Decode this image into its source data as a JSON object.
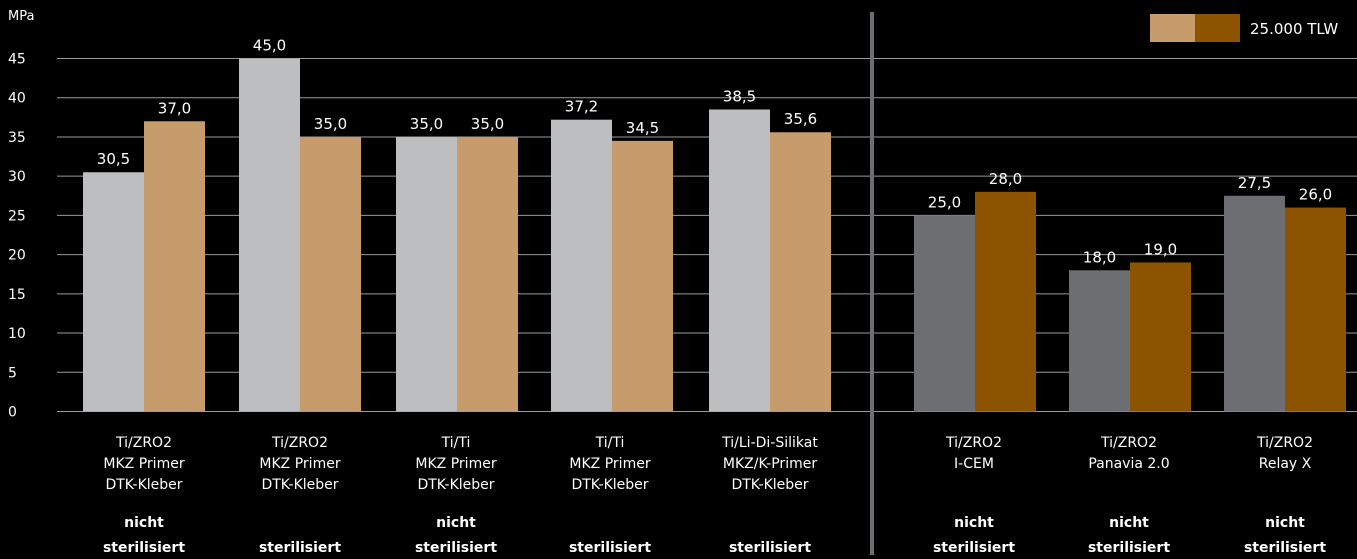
{
  "chart_data": {
    "type": "bar",
    "y_unit": "MPa",
    "ylim": [
      0,
      45
    ],
    "y_ticks": [
      0,
      5,
      10,
      15,
      20,
      25,
      30,
      35,
      40,
      45
    ],
    "grid": true,
    "legend": {
      "label": "25.000 TLW",
      "placement": "top-right",
      "colors": [
        "#c69c6d",
        "#8c5400"
      ]
    },
    "groups": [
      {
        "label": [
          "Ti/ZRO2",
          "MKZ Primer",
          "DTK-Kleber"
        ],
        "status": [
          "nicht",
          "sterilisiert"
        ],
        "values": [
          30.5,
          37.0
        ],
        "value_labels": [
          "30,5",
          "37,0"
        ],
        "colors": [
          "#bcbec0",
          "#c69c6d"
        ]
      },
      {
        "label": [
          "Ti/ZRO2",
          "MKZ Primer",
          "DTK-Kleber"
        ],
        "status": [
          "sterilisiert"
        ],
        "values": [
          45.0,
          35.0
        ],
        "value_labels": [
          "45,0",
          "35,0"
        ],
        "colors": [
          "#bcbec0",
          "#c69c6d"
        ]
      },
      {
        "label": [
          "Ti/Ti",
          "MKZ Primer",
          "DTK-Kleber"
        ],
        "status": [
          "nicht",
          "sterilisiert"
        ],
        "values": [
          35.0,
          35.0
        ],
        "value_labels": [
          "35,0",
          "35,0"
        ],
        "colors": [
          "#bcbec0",
          "#c69c6d"
        ]
      },
      {
        "label": [
          "Ti/Ti",
          "MKZ Primer",
          "DTK-Kleber"
        ],
        "status": [
          "sterilisiert"
        ],
        "values": [
          37.2,
          34.5
        ],
        "value_labels": [
          "37,2",
          "34,5"
        ],
        "colors": [
          "#bcbec0",
          "#c69c6d"
        ]
      },
      {
        "label": [
          "Ti/Li-Di-Silikat",
          "MKZ/K-Primer",
          "DTK-Kleber"
        ],
        "status": [
          "sterilisiert"
        ],
        "values": [
          38.5,
          35.6
        ],
        "value_labels": [
          "38,5",
          "35,6"
        ],
        "colors": [
          "#bcbec0",
          "#c69c6d"
        ]
      },
      {
        "label": [
          "Ti/ZRO2",
          "I-CEM"
        ],
        "status": [
          "nicht",
          "sterilisiert"
        ],
        "values": [
          25.0,
          28.0
        ],
        "value_labels": [
          "25,0",
          "28,0"
        ],
        "colors": [
          "#6d6e71",
          "#8c5400"
        ]
      },
      {
        "label": [
          "Ti/ZRO2",
          "Panavia 2.0"
        ],
        "status": [
          "nicht",
          "sterilisiert"
        ],
        "values": [
          18.0,
          19.0
        ],
        "value_labels": [
          "18,0",
          "19,0"
        ],
        "colors": [
          "#6d6e71",
          "#8c5400"
        ]
      },
      {
        "label": [
          "Ti/ZRO2",
          "Relay X"
        ],
        "status": [
          "nicht",
          "sterilisiert"
        ],
        "values": [
          27.5,
          26.0
        ],
        "value_labels": [
          "27,5",
          "26,0"
        ],
        "colors": [
          "#6d6e71",
          "#8c5400"
        ]
      }
    ]
  }
}
